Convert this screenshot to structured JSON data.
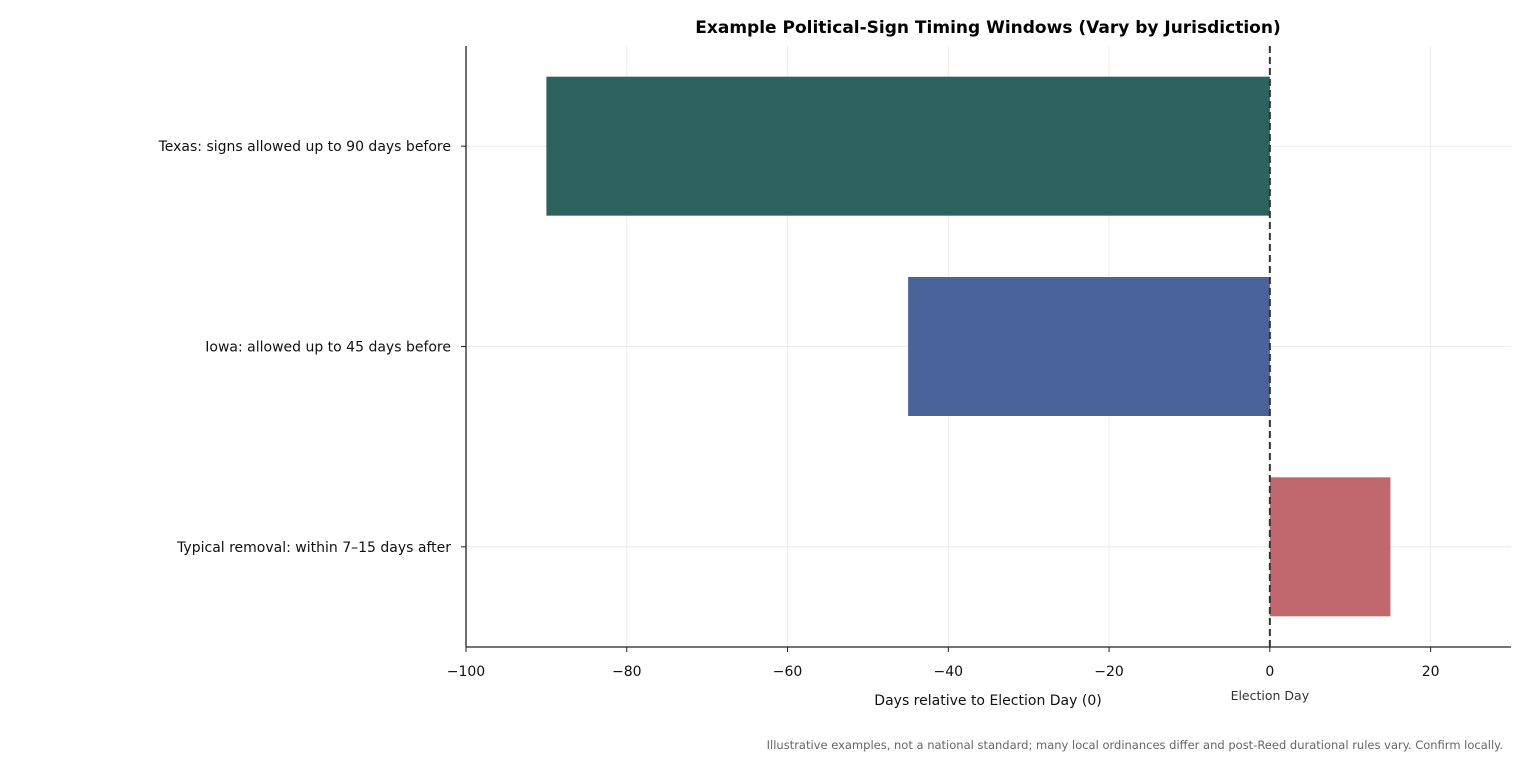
{
  "chart_data": {
    "type": "bar",
    "orientation": "horizontal",
    "title": "Example Political-Sign Timing Windows (Vary by Jurisdiction)",
    "xlabel": "Days relative to Election Day (0)",
    "ylabel": "",
    "xlim": [
      -100,
      30
    ],
    "xticks": [
      -100,
      -80,
      -60,
      -40,
      -20,
      0,
      20
    ],
    "xtick_labels": [
      "−100",
      "−80",
      "−60",
      "−40",
      "−20",
      "0",
      "20"
    ],
    "grid": true,
    "bars": [
      {
        "label": "Texas: signs allowed up to 90 days before",
        "start": -90,
        "end": 0,
        "color": "#2e625e"
      },
      {
        "label": "Iowa: allowed up to 45 days before",
        "start": -45,
        "end": 0,
        "color": "#4a6399"
      },
      {
        "label": "Typical removal: within 7–15 days after",
        "start": 0,
        "end": 15,
        "color": "#c0686d"
      }
    ],
    "reference_line": {
      "x": 0,
      "style": "dashed",
      "label": "Election Day",
      "color": "#333333"
    },
    "footnote": "Illustrative examples, not a national standard; many local ordinances differ and post-Reed durational rules vary. Confirm locally."
  }
}
